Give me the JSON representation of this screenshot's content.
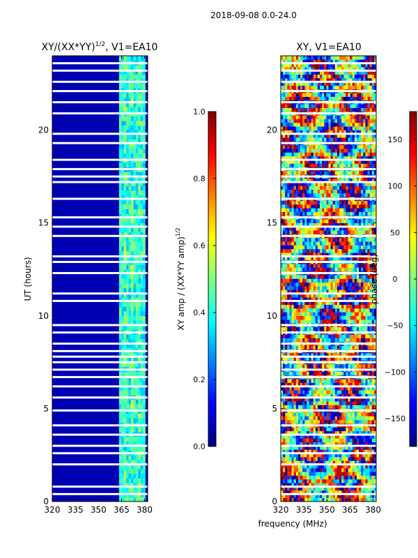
{
  "suptitle": "2018-09-08 0.0-24.0",
  "xlabel_common": "frequency (MHz)",
  "chart_data": [
    {
      "type": "heatmap",
      "title": "XY/(XX*YY)^{1/2}, V1=EA10",
      "title_main": "XY/(XX*YY)",
      "title_sup": "1/2",
      "title_tail": ", V1=EA10",
      "xlabel": "frequency (MHz)",
      "ylabel": "UT (hours)",
      "xlim": [
        320,
        382
      ],
      "ylim": [
        0,
        24
      ],
      "xticks": [
        320,
        335,
        350,
        365,
        380
      ],
      "yticks": [
        0,
        5,
        10,
        15,
        20
      ],
      "colormap": "jet",
      "colorbar": {
        "label": "XY amp / (XX*YY amp)^{1/2}",
        "label_main": "XY amp / (XX*YY amp)",
        "label_sup": "1/2",
        "range": [
          0.0,
          1.0
        ],
        "ticks": [
          "0.0",
          "0.2",
          "0.4",
          "0.6",
          "0.8",
          "1.0"
        ],
        "tick_values": [
          0.0,
          0.2,
          0.4,
          0.6,
          0.8,
          1.0
        ]
      },
      "high_amplitude_band_MHz": [
        362,
        380
      ],
      "typical_amplitude_outside_band": 0.05,
      "typical_amplitude_in_band": [
        0.3,
        0.6
      ]
    },
    {
      "type": "heatmap",
      "title": "XY, V1=EA10",
      "xlabel": "frequency (MHz)",
      "ylabel": "",
      "xlim": [
        320,
        382
      ],
      "ylim": [
        0,
        24
      ],
      "xticks": [
        320,
        335,
        350,
        365,
        380
      ],
      "yticks": [
        0,
        5,
        10,
        15,
        20
      ],
      "colormap": "jet",
      "colorbar": {
        "label": "phase (deg)",
        "range": [
          -180,
          180
        ],
        "ticks": [
          "−150",
          "−100",
          "−50",
          "0",
          "50",
          "100",
          "150"
        ],
        "tick_values": [
          -150,
          -100,
          -50,
          0,
          50,
          100,
          150
        ]
      }
    }
  ],
  "flagged_time_gaps_hours": [
    0.4,
    0.8,
    2.0,
    2.6,
    3.0,
    3.6,
    4.1,
    4.9,
    5.6,
    6.2,
    6.7,
    7.1,
    7.5,
    7.8,
    8.1,
    8.5,
    9.1,
    9.5,
    10.8,
    11.2,
    12.3,
    12.9,
    13.2,
    14.3,
    14.8,
    15.3,
    16.3,
    17.2,
    17.5,
    17.9,
    18.4,
    19.3,
    19.8,
    20.9,
    21.5,
    22.1,
    22.6,
    23.2,
    23.6
  ]
}
